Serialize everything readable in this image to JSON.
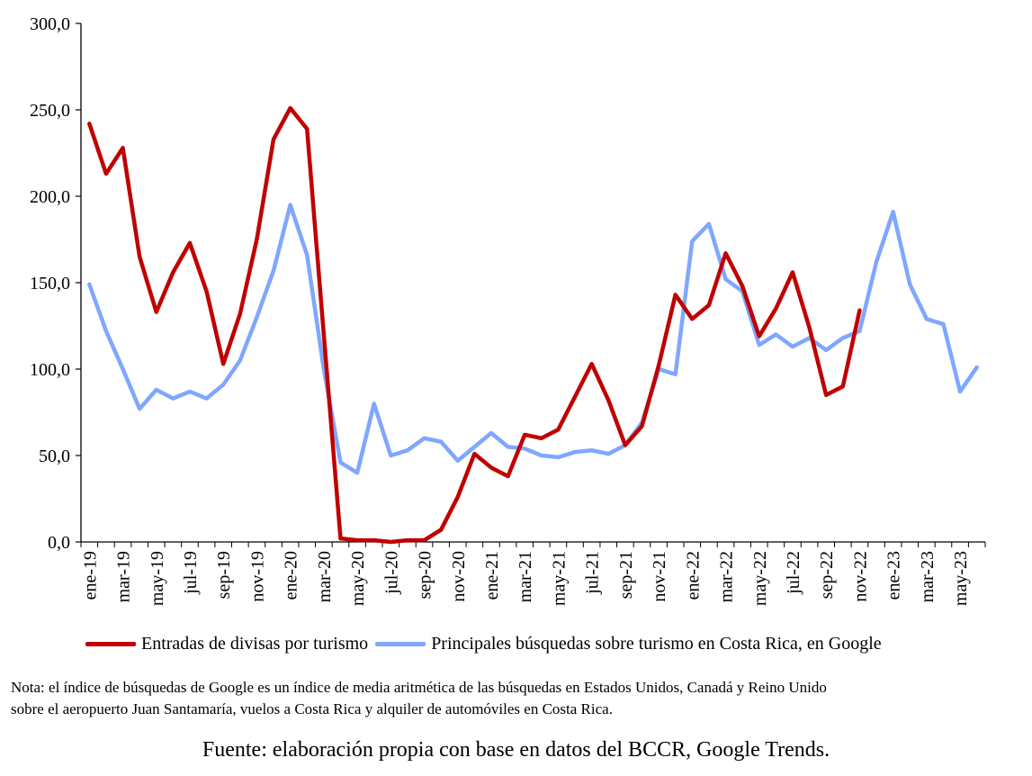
{
  "chart_data": {
    "type": "line",
    "categories": [
      "ene-19",
      "feb-19",
      "mar-19",
      "abr-19",
      "may-19",
      "jun-19",
      "jul-19",
      "ago-19",
      "sep-19",
      "oct-19",
      "nov-19",
      "dic-19",
      "ene-20",
      "feb-20",
      "mar-20",
      "abr-20",
      "may-20",
      "jun-20",
      "jul-20",
      "ago-20",
      "sep-20",
      "oct-20",
      "nov-20",
      "dic-20",
      "ene-21",
      "feb-21",
      "mar-21",
      "abr-21",
      "may-21",
      "jun-21",
      "jul-21",
      "ago-21",
      "sep-21",
      "oct-21",
      "nov-21",
      "dic-21",
      "ene-22",
      "feb-22",
      "mar-22",
      "abr-22",
      "may-22",
      "jun-22",
      "jul-22",
      "ago-22",
      "sep-22",
      "oct-22",
      "nov-22",
      "dic-22",
      "ene-23",
      "feb-23",
      "mar-23",
      "abr-23",
      "may-23",
      "jun-23"
    ],
    "tick_labels": [
      "ene-19",
      "mar-19",
      "may-19",
      "jul-19",
      "sep-19",
      "nov-19",
      "ene-20",
      "mar-20",
      "may-20",
      "jul-20",
      "sep-20",
      "nov-20",
      "ene-21",
      "mar-21",
      "may-21",
      "jul-21",
      "sep-21",
      "nov-21",
      "ene-22",
      "mar-22",
      "may-22",
      "jul-22",
      "sep-22",
      "nov-22",
      "ene-23",
      "mar-23",
      "may-23"
    ],
    "y_tick_labels": [
      "0,0",
      "50,0",
      "100,0",
      "150,0",
      "200,0",
      "250,0",
      "300,0"
    ],
    "ylim": [
      0,
      300
    ],
    "grid": false,
    "legend_position": "bottom",
    "series": [
      {
        "name": "Entradas de divisas por turismo",
        "color": "#c00000",
        "values": [
          242,
          213,
          228,
          165,
          133,
          156,
          173,
          145,
          103,
          132,
          175,
          233,
          251,
          239,
          120,
          2,
          1,
          1,
          0,
          1,
          1,
          7,
          26,
          51,
          43,
          38,
          62,
          60,
          65,
          84,
          103,
          82,
          56,
          67,
          102,
          143,
          129,
          137,
          167,
          148,
          119,
          135,
          156,
          124,
          85,
          90,
          134,
          null,
          null,
          null,
          null,
          null,
          null,
          null
        ]
      },
      {
        "name": "Principales búsquedas sobre turismo en Costa Rica, en Google",
        "color": "#7fa7ff",
        "values": [
          149,
          122,
          100,
          77,
          88,
          83,
          87,
          83,
          91,
          105,
          130,
          157,
          195,
          166,
          100,
          46,
          40,
          80,
          50,
          53,
          60,
          58,
          47,
          55,
          63,
          55,
          54,
          50,
          49,
          52,
          53,
          51,
          56,
          69,
          100,
          97,
          174,
          184,
          152,
          145,
          114,
          120,
          113,
          118,
          111,
          118,
          122,
          162,
          191,
          149,
          129,
          126,
          87,
          101
        ]
      }
    ]
  },
  "legend": {
    "item1": "Entradas de divisas por turismo",
    "item2": "Principales búsquedas sobre turismo en Costa Rica, en Google"
  },
  "note": {
    "line1": "Nota: el índice de búsquedas de Google es un índice de media aritmética de las búsquedas en Estados Unidos, Canadá y Reino Unido",
    "line2": "sobre el aeropuerto Juan Santamaría, vuelos a Costa Rica y alquiler de automóviles en Costa Rica."
  },
  "source": "Fuente: elaboración propia con base en datos del BCCR, Google Trends.",
  "colors": {
    "series1": "#c00000",
    "series2": "#7fa7ff"
  }
}
